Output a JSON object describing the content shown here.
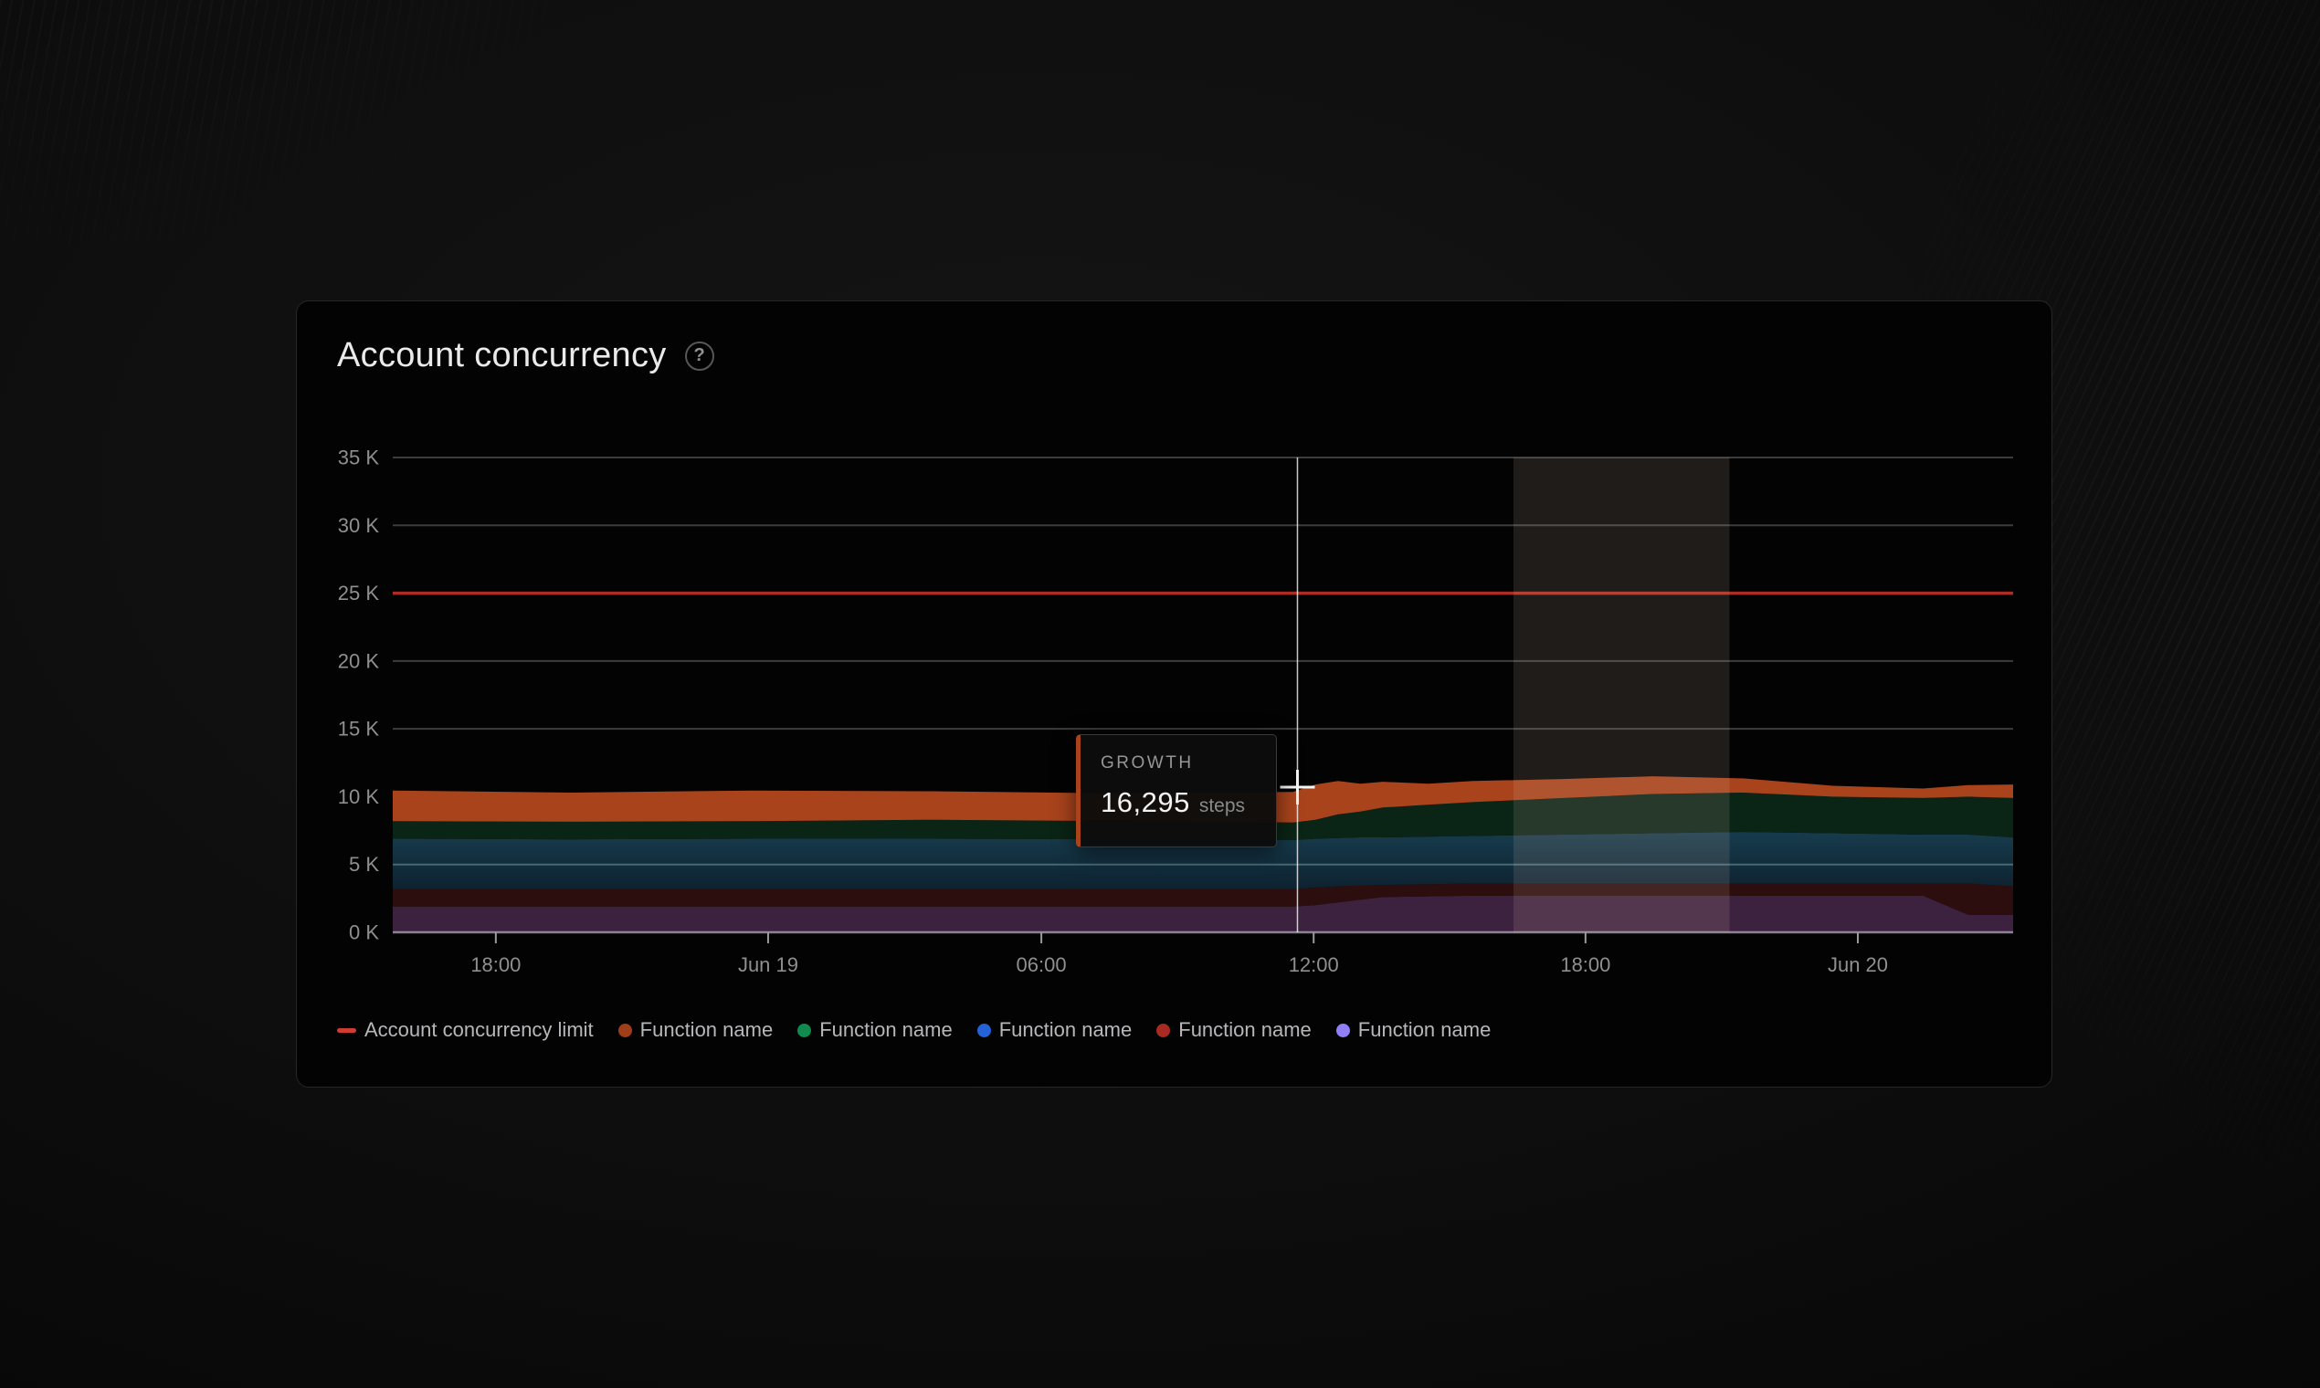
{
  "header": {
    "title": "Account concurrency",
    "help_icon": "?"
  },
  "tooltip": {
    "label": "GROWTH",
    "value": "16,295",
    "unit": "steps",
    "accent_color": "#a8431c"
  },
  "legend": [
    {
      "label": "Account concurrency limit",
      "shape": "dash",
      "color": "#d23b30"
    },
    {
      "label": "Function name",
      "shape": "dot",
      "color": "#a03e1a"
    },
    {
      "label": "Function name",
      "shape": "dot",
      "color": "#108a4e"
    },
    {
      "label": "Function name",
      "shape": "dot",
      "color": "#2462d8"
    },
    {
      "label": "Function name",
      "shape": "dot",
      "color": "#a82a23"
    },
    {
      "label": "Function name",
      "shape": "dot",
      "color": "#8f80f8"
    }
  ],
  "chart_data": {
    "type": "area",
    "stacked": true,
    "title": "Account concurrency",
    "unit": "steps",
    "ylim": [
      0,
      35000
    ],
    "grid": true,
    "legend_position": "bottom",
    "y_ticks": [
      {
        "value": 0,
        "label": "0 K"
      },
      {
        "value": 5000,
        "label": "5 K"
      },
      {
        "value": 10000,
        "label": "10 K"
      },
      {
        "value": 15000,
        "label": "15 K"
      },
      {
        "value": 20000,
        "label": "20 K"
      },
      {
        "value": 25000,
        "label": "25 K"
      },
      {
        "value": 30000,
        "label": "30 K"
      },
      {
        "value": 35000,
        "label": "35 K"
      }
    ],
    "x_range_hours": 36,
    "x_ticks": [
      {
        "h": 2.29,
        "label": "18:00"
      },
      {
        "h": 8.34,
        "label": "Jun 19"
      },
      {
        "h": 14.41,
        "label": "06:00"
      },
      {
        "h": 20.46,
        "label": "12:00"
      },
      {
        "h": 26.5,
        "label": "18:00"
      },
      {
        "h": 32.55,
        "label": "Jun 20"
      }
    ],
    "limit": {
      "label": "Account concurrency limit",
      "value": 25000,
      "color": "#ab2d23"
    },
    "x_hours": [
      0,
      4,
      8,
      12,
      16,
      20,
      20.5,
      21,
      21.5,
      22,
      23,
      24,
      26,
      28,
      30,
      32,
      34,
      35,
      36
    ],
    "series": [
      {
        "name": "Function name",
        "color_key": "violet",
        "fill": "#3d2240",
        "values": [
          1900,
          1900,
          1900,
          1900,
          1900,
          1900,
          2000,
          2200,
          2400,
          2600,
          2650,
          2700,
          2700,
          2700,
          2700,
          2700,
          2700,
          1300,
          1300
        ]
      },
      {
        "name": "Function name",
        "color_key": "red",
        "fill": "#2b0e0d",
        "values": [
          1300,
          1300,
          1300,
          1300,
          1300,
          1300,
          1300,
          1200,
          1050,
          900,
          900,
          900,
          900,
          900,
          900,
          900,
          900,
          2300,
          2100
        ]
      },
      {
        "name": "Function name",
        "color_key": "blue",
        "fill": "#103040",
        "gradient_stops": [
          "#173c4d",
          "#0e2230"
        ],
        "values": [
          3700,
          3650,
          3700,
          3700,
          3650,
          3600,
          3600,
          3550,
          3550,
          3500,
          3500,
          3500,
          3600,
          3700,
          3800,
          3700,
          3600,
          3600,
          3600
        ]
      },
      {
        "name": "Function name",
        "color_key": "green",
        "fill": "#0a2415",
        "values": [
          1300,
          1300,
          1300,
          1400,
          1350,
          1300,
          1400,
          1750,
          1900,
          2200,
          2350,
          2500,
          2700,
          2900,
          2900,
          2700,
          2700,
          2800,
          2900
        ]
      },
      {
        "name": "Function name",
        "color_key": "orange",
        "fill": "#a8431c",
        "values": [
          2250,
          2150,
          2250,
          2100,
          2050,
          2250,
          2600,
          2450,
          2050,
          1900,
          1550,
          1550,
          1400,
          1300,
          1050,
          800,
          700,
          850,
          1000
        ]
      }
    ],
    "highlight_window": {
      "h_start": 24.9,
      "h_end": 29.7,
      "color": "rgba(233,199,189,0.13)"
    },
    "crosshair": {
      "h": 20.1,
      "value": 10700
    },
    "hovered": {
      "series": "GROWTH",
      "value": 16295,
      "unit": "steps"
    }
  }
}
